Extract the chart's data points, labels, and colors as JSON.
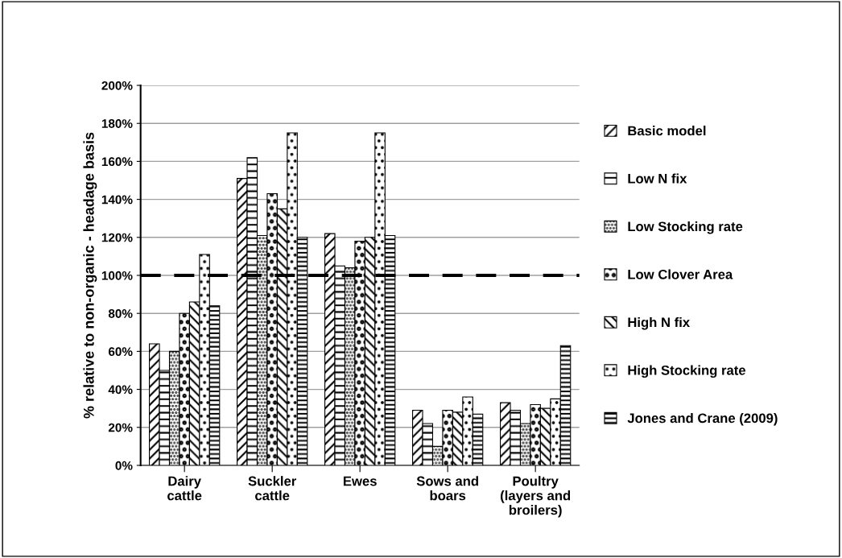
{
  "chart_data": {
    "type": "bar",
    "ylabel": "% relative to non-organic - headage basis",
    "categories": [
      "Dairy cattle",
      "Suckler cattle",
      "Ewes",
      "Sows and boars",
      "Poultry (layers and broilers)"
    ],
    "series": [
      {
        "name": "Basic model",
        "color": "#000000",
        "values": [
          64,
          151,
          122,
          29,
          33
        ]
      },
      {
        "name": "Low N fix",
        "color": "#000000",
        "values": [
          50,
          162,
          105,
          22,
          29
        ]
      },
      {
        "name": "Low Stocking rate",
        "color": "#000000",
        "values": [
          60,
          121,
          104,
          10,
          22
        ]
      },
      {
        "name": "Low Clover Area",
        "color": "#000000",
        "values": [
          80,
          143,
          118,
          29,
          32
        ]
      },
      {
        "name": "High N fix",
        "color": "#000000",
        "values": [
          86,
          135,
          120,
          28,
          30
        ]
      },
      {
        "name": "High Stocking rate",
        "color": "#000000",
        "values": [
          111,
          175,
          175,
          36,
          35
        ]
      },
      {
        "name": "Jones and Crane (2009)",
        "color": "#000000",
        "values": [
          84,
          120,
          121,
          27,
          63
        ]
      }
    ],
    "ylim": [
      0,
      200
    ],
    "yticks": [
      {
        "value": 0,
        "label": "0%"
      },
      {
        "value": 20,
        "label": "20%"
      },
      {
        "value": 40,
        "label": "40%"
      },
      {
        "value": 60,
        "label": "60%"
      },
      {
        "value": 80,
        "label": "80%"
      },
      {
        "value": 100,
        "label": "100%"
      },
      {
        "value": 120,
        "label": "120%"
      },
      {
        "value": 140,
        "label": "140%"
      },
      {
        "value": 160,
        "label": "160%"
      },
      {
        "value": 180,
        "label": "180%"
      },
      {
        "value": 200,
        "label": "200%"
      }
    ],
    "ref_lines": [
      {
        "axis": "y",
        "value": 100,
        "color": "#000000",
        "line_style": "dashed"
      }
    ],
    "grid": "y",
    "legend": "right"
  }
}
